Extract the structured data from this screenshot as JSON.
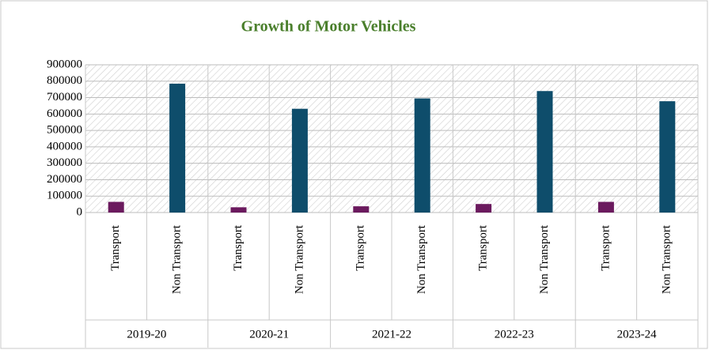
{
  "chart_data": {
    "type": "bar",
    "title": "Growth  of Motor Vehicles",
    "categories": [
      "2019-20",
      "2020-21",
      "2021-22",
      "2022-23",
      "2023-24"
    ],
    "series": [
      {
        "name": "Transport",
        "color": "#6b1a5e",
        "values": [
          65000,
          32000,
          38000,
          52000,
          65000
        ]
      },
      {
        "name": "Non Transport",
        "color": "#0e4d6b",
        "values": [
          785000,
          632000,
          695000,
          740000,
          678000
        ]
      }
    ],
    "ylim": [
      0,
      900000
    ],
    "yticks": [
      0,
      100000,
      200000,
      300000,
      400000,
      500000,
      600000,
      700000,
      800000,
      900000
    ],
    "grid": true
  }
}
